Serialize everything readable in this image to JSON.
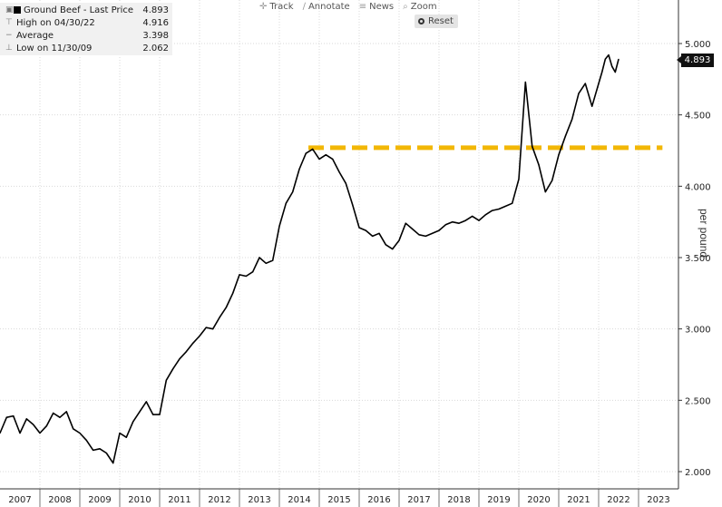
{
  "toolbar": {
    "items": [
      {
        "icon": "crosshair-icon",
        "glyph": "✛",
        "label": "Track"
      },
      {
        "icon": "pencil-icon",
        "glyph": "∕",
        "label": "Annotate"
      },
      {
        "icon": "news-icon",
        "glyph": "≡",
        "label": "News"
      },
      {
        "icon": "magnifier-icon",
        "glyph": "⌕",
        "label": "Zoom"
      }
    ],
    "reset_label": "Reset"
  },
  "legend": {
    "title": "Ground Beef - Last Price",
    "title_value": "4.893",
    "rows": [
      {
        "label": "High on 04/30/22",
        "value": "4.916"
      },
      {
        "label": "Average",
        "value": "3.398"
      },
      {
        "label": "Low on 11/30/09",
        "value": "2.062"
      }
    ]
  },
  "last_price_badge": "4.893",
  "colors": {
    "line": "#000000",
    "reference": "#f2b705",
    "grid": "#d9d9d9"
  },
  "chart_data": {
    "type": "line",
    "title": "Ground Beef - Last Price",
    "ylabel": "per pound",
    "y_axis_position": "right",
    "ylim": [
      2.0,
      5.0
    ],
    "xlim": [
      "2007-01",
      "2023-12"
    ],
    "grid": true,
    "y_ticks": [
      "2.000",
      "2.500",
      "3.000",
      "3.500",
      "4.000",
      "4.500",
      "5.000"
    ],
    "x_ticks": [
      "2007",
      "2008",
      "2009",
      "2010",
      "2011",
      "2012",
      "2013",
      "2014",
      "2015",
      "2016",
      "2017",
      "2018",
      "2019",
      "2020",
      "2021",
      "2022",
      "2023"
    ],
    "series": [
      {
        "name": "Ground Beef - Last Price",
        "color": "#000000",
        "x": [
          "2007-01",
          "2007-03",
          "2007-05",
          "2007-07",
          "2007-09",
          "2007-11",
          "2008-01",
          "2008-03",
          "2008-05",
          "2008-07",
          "2008-09",
          "2008-11",
          "2009-01",
          "2009-03",
          "2009-05",
          "2009-07",
          "2009-09",
          "2009-11",
          "2010-01",
          "2010-03",
          "2010-05",
          "2010-07",
          "2010-09",
          "2010-11",
          "2011-01",
          "2011-03",
          "2011-05",
          "2011-07",
          "2011-09",
          "2011-11",
          "2012-01",
          "2012-03",
          "2012-05",
          "2012-07",
          "2012-09",
          "2012-11",
          "2013-01",
          "2013-03",
          "2013-05",
          "2013-07",
          "2013-09",
          "2013-11",
          "2014-01",
          "2014-03",
          "2014-05",
          "2014-07",
          "2014-09",
          "2014-11",
          "2015-01",
          "2015-03",
          "2015-05",
          "2015-07",
          "2015-09",
          "2015-11",
          "2016-01",
          "2016-03",
          "2016-05",
          "2016-07",
          "2016-09",
          "2016-11",
          "2017-01",
          "2017-03",
          "2017-05",
          "2017-07",
          "2017-09",
          "2017-11",
          "2018-01",
          "2018-03",
          "2018-05",
          "2018-07",
          "2018-09",
          "2018-11",
          "2019-01",
          "2019-03",
          "2019-05",
          "2019-07",
          "2019-09",
          "2019-11",
          "2020-01",
          "2020-03",
          "2020-05",
          "2020-07",
          "2020-09",
          "2020-11",
          "2021-01",
          "2021-03",
          "2021-05",
          "2021-07",
          "2021-09",
          "2021-11",
          "2022-01",
          "2022-02",
          "2022-03",
          "2022-04",
          "2022-05",
          "2022-06",
          "2022-07"
        ],
        "values": [
          2.27,
          2.38,
          2.39,
          2.27,
          2.37,
          2.33,
          2.27,
          2.32,
          2.41,
          2.38,
          2.42,
          2.3,
          2.27,
          2.22,
          2.15,
          2.16,
          2.13,
          2.06,
          2.27,
          2.24,
          2.35,
          2.42,
          2.49,
          2.4,
          2.4,
          2.64,
          2.72,
          2.79,
          2.84,
          2.9,
          2.95,
          3.01,
          3.0,
          3.08,
          3.15,
          3.25,
          3.38,
          3.37,
          3.4,
          3.5,
          3.46,
          3.48,
          3.72,
          3.88,
          3.96,
          4.12,
          4.23,
          4.26,
          4.19,
          4.22,
          4.19,
          4.1,
          4.02,
          3.87,
          3.71,
          3.69,
          3.65,
          3.67,
          3.59,
          3.56,
          3.62,
          3.74,
          3.7,
          3.66,
          3.65,
          3.67,
          3.69,
          3.73,
          3.75,
          3.74,
          3.76,
          3.79,
          3.76,
          3.8,
          3.83,
          3.84,
          3.86,
          3.88,
          4.05,
          4.73,
          4.28,
          4.15,
          3.96,
          4.04,
          4.22,
          4.35,
          4.47,
          4.65,
          4.72,
          4.56,
          4.72,
          4.8,
          4.89,
          4.92,
          4.84,
          4.8,
          4.89
        ]
      }
    ],
    "reference_line": {
      "y": 4.27,
      "x_start": "2015-01",
      "x_end": "2023-12",
      "style": "dashed",
      "color": "#f2b705"
    }
  }
}
